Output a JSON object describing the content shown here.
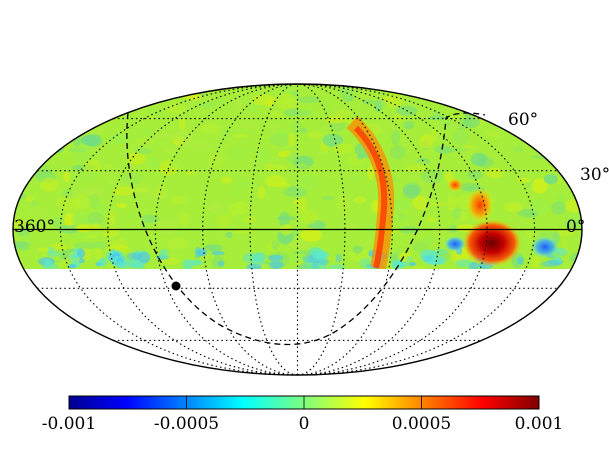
{
  "map": {
    "projection": "mollweide",
    "coverage": "declination above about -10 degrees",
    "graticule": {
      "longitude_step_deg": 30,
      "latitude_step_deg": 30,
      "style": "dotted"
    },
    "labels": {
      "lon_left": "360°",
      "lon_right": "0°",
      "lat_60": "60°",
      "lat_30": "30°"
    },
    "marker": "filled black dot",
    "dashed_curve": "dashed circle reference line"
  },
  "colorbar": {
    "colormap": "jet",
    "min": -0.001,
    "max": 0.001,
    "ticks": [
      "-0.001",
      "-0.0005",
      "0",
      "0.0005",
      "0.001"
    ],
    "tick_values": [
      -0.001,
      -0.0005,
      0,
      0.0005,
      0.001
    ]
  },
  "colors": {
    "background_field": "#a6ee3a",
    "hot": "#b80000",
    "cold": "#2fa0ff"
  }
}
